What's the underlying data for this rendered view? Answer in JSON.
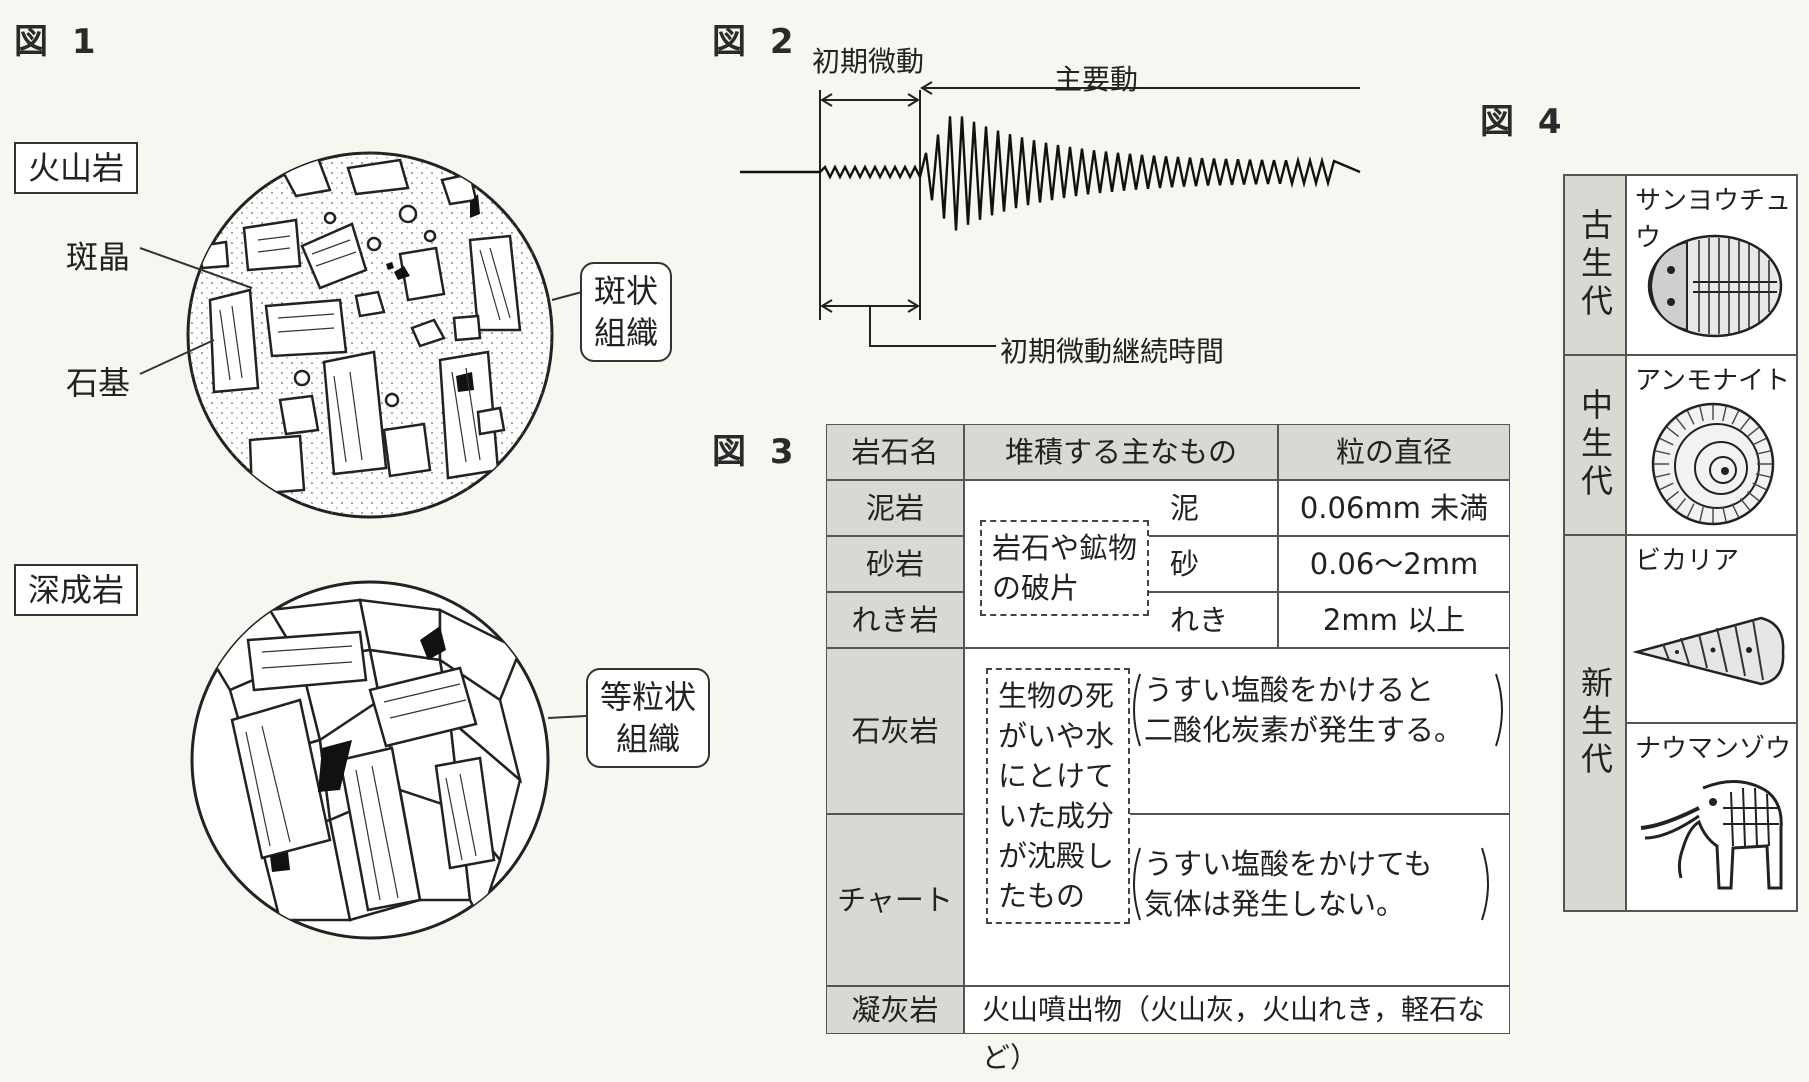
{
  "fig1": {
    "label": "図 1",
    "volcanic": {
      "name": "火山岩",
      "phenocryst": "斑晶",
      "groundmass": "石基",
      "texture": [
        "斑状",
        "組織"
      ]
    },
    "plutonic": {
      "name": "深成岩",
      "texture": [
        "等粒状",
        "組織"
      ]
    }
  },
  "fig2": {
    "label": "図 2",
    "p_wave": "初期微動",
    "s_wave": "主要動",
    "duration": "初期微動継続時間"
  },
  "fig3": {
    "label": "図 3",
    "headers": [
      "岩石名",
      "堆積する主なもの",
      "粒の直径"
    ],
    "clastic": {
      "box": [
        "岩石や鉱物",
        "の破片"
      ],
      "rows": [
        {
          "name": "泥岩",
          "material": "泥",
          "size": "0.06mm 未満"
        },
        {
          "name": "砂岩",
          "material": "砂",
          "size": "0.06〜2mm"
        },
        {
          "name": "れき岩",
          "material": "れき",
          "size": "2mm 以上"
        }
      ]
    },
    "bio": {
      "box": [
        "生物の死",
        "がいや水",
        "にとけて",
        "いた成分",
        "が沈殿し",
        "たもの"
      ],
      "rows": [
        {
          "name": "石灰岩",
          "note": [
            "うすい塩酸をかけると",
            "二酸化炭素が発生する。"
          ]
        },
        {
          "name": "チャート",
          "note": [
            "うすい塩酸をかけても",
            "気体は発生しない。"
          ]
        }
      ]
    },
    "tuff": {
      "name": "凝灰岩",
      "material": "火山噴出物（火山灰，火山れき，軽石など）"
    }
  },
  "fig4": {
    "label": "図 4",
    "eras": [
      {
        "era": "古生代",
        "fossils": [
          {
            "name": "サンヨウチュウ",
            "icon": "trilobite-icon"
          }
        ]
      },
      {
        "era": "中生代",
        "fossils": [
          {
            "name": "アンモナイト",
            "icon": "ammonite-icon"
          }
        ]
      },
      {
        "era": "新生代",
        "fossils": [
          {
            "name": "ビカリア",
            "icon": "vicarya-icon"
          },
          {
            "name": "ナウマンゾウ",
            "icon": "naumann-elephant-icon"
          }
        ]
      }
    ]
  }
}
